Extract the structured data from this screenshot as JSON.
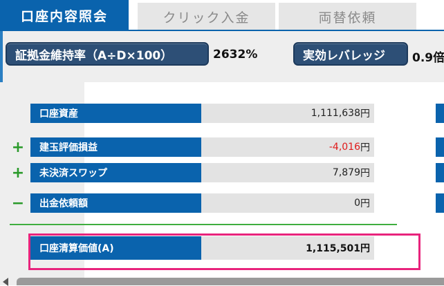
{
  "tabs": [
    {
      "label": "口座内容照会",
      "active": true
    },
    {
      "label": "クリック入金",
      "active": false
    },
    {
      "label": "両替依頼",
      "active": false
    }
  ],
  "metrics": {
    "margin_rate_label": "証拠金維持率（A÷D×100）",
    "margin_rate_value": "2632%",
    "leverage_label": "実効レバレッジ",
    "leverage_value": "0.9倍"
  },
  "account": {
    "rows": [
      {
        "sign": "",
        "label": "口座資産",
        "amount": "1,111,638",
        "unit": "円"
      },
      {
        "sign": "+",
        "label": "建玉評価損益",
        "amount": "-4,016",
        "unit": "円"
      },
      {
        "sign": "+",
        "label": "未決済スワップ",
        "amount": "7,879",
        "unit": "円"
      },
      {
        "sign": "−",
        "label": "出金依頼額",
        "amount": "0",
        "unit": "円"
      }
    ],
    "total": {
      "label": "口座清算価値(A)",
      "value": "1,115,501円"
    }
  },
  "colors": {
    "primary_blue": "#0a63ad",
    "negative_red": "#e01a1a",
    "sign_green": "#2a9a2a",
    "highlight_pink": "#e8237c"
  },
  "icons": {
    "scroll_left": "triangle-left-icon"
  }
}
